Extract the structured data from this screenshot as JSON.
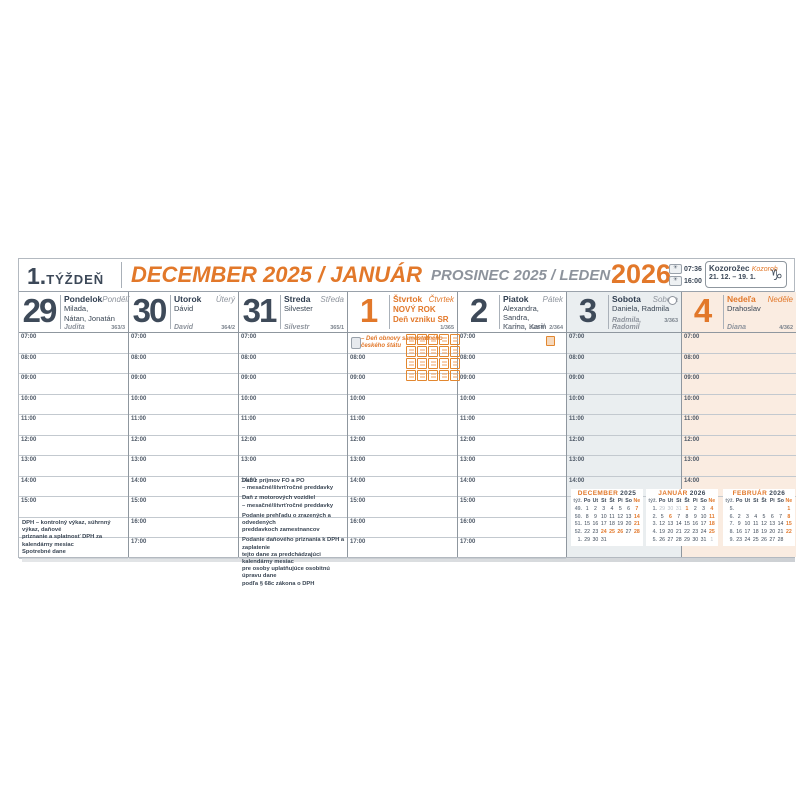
{
  "header": {
    "week_number": "1.",
    "week_word": "TÝŽDEŇ",
    "title_sk": "DECEMBER 2025 / JANUÁR",
    "title_cz": "PROSINEC 2025 / LEDEN",
    "year": "2026",
    "sunrise_time": "07:36",
    "sunset_time": "16:00",
    "sun_icon": "☀",
    "zodiac_sk": "Kozorožec",
    "zodiac_cz": "Kozoroh",
    "zodiac_range": "21. 12. – 19. 1.",
    "zodiac_symbol": "♑"
  },
  "colors": {
    "accent_orange": "#e2782a",
    "navy": "#3e4a59",
    "czech_grey": "#8d939c",
    "saturday_bg": "#eaeef0",
    "sunday_bg": "#faece1"
  },
  "days": [
    {
      "num": "29",
      "accent": false,
      "kind": "weekday",
      "name_sk": "Pondelok",
      "name_cz": "Pondělí",
      "names": [
        "Milada,",
        "Nátan, Jonatán"
      ],
      "names_cz": "Judita",
      "day_of_year": "363/3",
      "times": [
        "07:00",
        "08:00",
        "09:00",
        "10:00",
        "11:00",
        "12:00",
        "13:00",
        "14:00",
        "15:00",
        "",
        ""
      ]
    },
    {
      "num": "30",
      "accent": false,
      "kind": "weekday",
      "name_sk": "Utorok",
      "name_cz": "Úterý",
      "names": [
        "Dávid"
      ],
      "names_cz": "David",
      "day_of_year": "364/2",
      "times": [
        "07:00",
        "08:00",
        "09:00",
        "10:00",
        "11:00",
        "12:00",
        "13:00",
        "14:00",
        "15:00",
        "16:00",
        "17:00"
      ]
    },
    {
      "num": "31",
      "accent": false,
      "kind": "weekday",
      "name_sk": "Streda",
      "name_cz": "Středa",
      "names": [
        "Silvester"
      ],
      "names_cz": "Silvestr",
      "day_of_year": "365/1",
      "times": [
        "07:00",
        "08:00",
        "09:00",
        "10:00",
        "11:00",
        "12:00",
        "13:00",
        "14:00",
        "",
        "",
        ""
      ]
    },
    {
      "num": "1",
      "accent": true,
      "kind": "weekday",
      "name_sk": "Štvrtok",
      "name_cz": "Čtvrtek",
      "names": [],
      "holiday": [
        "NOVÝ ROK",
        "Deň vzniku SR"
      ],
      "names_cz": "",
      "day_of_year": "1/365",
      "times": [
        "",
        "08:00",
        "09:00",
        "10:00",
        "11:00",
        "12:00",
        "13:00",
        "14:00",
        "15:00",
        "16:00",
        "17:00"
      ]
    },
    {
      "num": "2",
      "accent": false,
      "kind": "weekday",
      "name_sk": "Piatok",
      "name_cz": "Pátek",
      "names": [
        "Alexandra, Sandra,",
        "Karina, Karin"
      ],
      "names_cz": "Karina, Vasil",
      "day_of_year": "2/364",
      "times": [
        "07:00",
        "08:00",
        "09:00",
        "10:00",
        "11:00",
        "12:00",
        "13:00",
        "14:00",
        "15:00",
        "16:00",
        "17:00"
      ]
    },
    {
      "num": "3",
      "accent": false,
      "kind": "sat",
      "name_sk": "Sobota",
      "name_cz": "Sobota",
      "names": [
        "Daniela, Radmila"
      ],
      "names_cz": "Radmila, Radomil",
      "day_of_year": "3/363",
      "moon": "full-moon-icon",
      "times": [
        "07:00",
        "08:00",
        "09:00",
        "10:00",
        "11:00",
        "12:00",
        "13:00",
        "14:00"
      ]
    },
    {
      "num": "4",
      "accent": true,
      "kind": "sun",
      "name_sk": "Nedeľa",
      "name_cz": "Neděle",
      "names": [
        "Drahoslav"
      ],
      "names_cz": "Diana",
      "day_of_year": "4/362",
      "times": [
        "07:00",
        "08:00",
        "09:00",
        "10:00",
        "11:00",
        "12:00",
        "13:00",
        "14:00"
      ]
    }
  ],
  "notes": {
    "monday_tax": [
      "DPH – kontrolný výkaz, súhrnný výkaz, daňové",
      "priznanie a splatnosť DPH za kalendárny mesiac",
      "Spotrebné dane"
    ],
    "wednesday_tax": [
      [
        "Daň z príjmov FO a PO",
        "– mesačné/štvrťročné preddavky"
      ],
      [
        "Daň z motorových vozidiel",
        "– mesačné/štvrťročné preddavky"
      ],
      [
        "Podanie prehľadu o zrazených a odvedených",
        "preddavkoch zamestnancov"
      ],
      [
        "Podanie daňového priznania k DPH a zaplatenie",
        "tejto dane za predchádzajúci kalendárny mesiac",
        "pre osoby uplatňujúce osobitnú úpravu dane",
        "podľa § 68c zákona o DPH"
      ]
    ],
    "thursday_cz_holiday": [
      "– Deň obnovy samostatného",
      "českého štátu"
    ]
  },
  "mini_calendars": [
    {
      "month": "DECEMBER",
      "year": "2025",
      "week_col": "týž.",
      "dow": [
        "Po",
        "Ut",
        "St",
        "Št",
        "Pi",
        "So",
        "o:Ne"
      ],
      "weeks": [
        {
          "n": "49.",
          "d": [
            "1",
            "2",
            "3",
            "4",
            "5",
            "6",
            "o:7"
          ]
        },
        {
          "n": "50.",
          "d": [
            "8",
            "9",
            "10",
            "11",
            "12",
            "13",
            "o:14"
          ]
        },
        {
          "n": "51.",
          "d": [
            "15",
            "16",
            "17",
            "18",
            "19",
            "20",
            "o:21"
          ]
        },
        {
          "n": "52.",
          "d": [
            "22",
            "23",
            "o:24",
            "o:25",
            "o:26",
            "27",
            "o:28"
          ]
        },
        {
          "n": "1.",
          "d": [
            "29",
            "30",
            "31",
            "",
            "",
            "",
            ""
          ]
        }
      ]
    },
    {
      "month": "JANUÁR",
      "year": "2026",
      "week_col": "týž.",
      "dow": [
        "Po",
        "Ut",
        "St",
        "Št",
        "Pi",
        "So",
        "o:Ne"
      ],
      "weeks": [
        {
          "n": "1.",
          "d": [
            "g:29",
            "g:30",
            "g:31",
            "o:1",
            "2",
            "3",
            "o:4"
          ]
        },
        {
          "n": "2.",
          "d": [
            "5",
            "o:6",
            "7",
            "8",
            "9",
            "10",
            "o:11"
          ]
        },
        {
          "n": "3.",
          "d": [
            "12",
            "13",
            "14",
            "15",
            "16",
            "17",
            "o:18"
          ]
        },
        {
          "n": "4.",
          "d": [
            "19",
            "20",
            "21",
            "22",
            "23",
            "24",
            "o:25"
          ]
        },
        {
          "n": "5.",
          "d": [
            "26",
            "27",
            "28",
            "29",
            "30",
            "31",
            "g:1"
          ]
        }
      ]
    },
    {
      "month": "FEBRUÁR",
      "year": "2026",
      "week_col": "týž.",
      "dow": [
        "Po",
        "Ut",
        "St",
        "Št",
        "Pi",
        "So",
        "o:Ne"
      ],
      "weeks": [
        {
          "n": "5.",
          "d": [
            "",
            "",
            "",
            "",
            "",
            "",
            "o:1"
          ]
        },
        {
          "n": "6.",
          "d": [
            "2",
            "3",
            "4",
            "5",
            "6",
            "7",
            "o:8"
          ]
        },
        {
          "n": "7.",
          "d": [
            "9",
            "10",
            "11",
            "12",
            "13",
            "14",
            "o:15"
          ]
        },
        {
          "n": "8.",
          "d": [
            "16",
            "17",
            "18",
            "19",
            "20",
            "21",
            "o:22"
          ]
        },
        {
          "n": "9.",
          "d": [
            "23",
            "24",
            "25",
            "26",
            "27",
            "28",
            ""
          ]
        }
      ]
    }
  ]
}
